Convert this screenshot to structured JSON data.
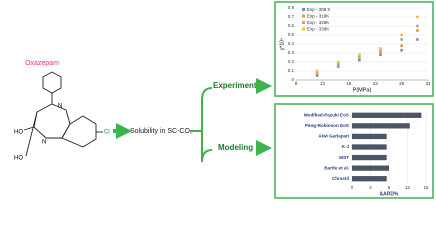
{
  "diagram": {
    "compound": "Oxazepam",
    "atoms": [
      "N",
      "N",
      "Cl",
      "HO",
      "HO"
    ],
    "process": "Solubility in SC-CO₂",
    "branches": [
      "Experimental",
      "Modeling"
    ]
  },
  "chart_data": [
    {
      "type": "scatter",
      "xlabel": "P(MPa)",
      "ylabel": "y*10⁴",
      "x": [
        12,
        16,
        20,
        24,
        28,
        31
      ],
      "series": [
        {
          "name": "Exp - 308 K",
          "color": "#6f8fc7",
          "values": [
            0.05,
            0.15,
            0.22,
            0.28,
            0.33,
            0.45
          ]
        },
        {
          "name": "Exp - 318K",
          "color": "#e8923a",
          "values": [
            0.07,
            0.17,
            0.25,
            0.3,
            0.38,
            0.55
          ]
        },
        {
          "name": "Exp - 328K",
          "color": "#a6a6a6",
          "values": [
            0.08,
            0.18,
            0.27,
            0.33,
            0.45,
            0.6
          ]
        },
        {
          "name": "Exp - 338K",
          "color": "#f2c12e",
          "values": [
            0.1,
            0.2,
            0.28,
            0.35,
            0.5,
            0.7
          ]
        }
      ],
      "xlim": [
        8,
        33
      ],
      "xticks": [
        8,
        13,
        18,
        23,
        28,
        33
      ],
      "ylim": [
        0,
        0.8
      ],
      "yticks": [
        0,
        0.1,
        0.2,
        0.3,
        0.4,
        0.5,
        0.6,
        0.7,
        0.8
      ],
      "grid": true
    },
    {
      "type": "barh",
      "xlabel": "AARD%",
      "color": "#4a5566",
      "categories": [
        "Modified-Pazuki EoS",
        "Peng-Robinson EoS",
        "Alwi Garlapati",
        "K-J",
        "MST",
        "Bartle et al.",
        "Chrastil"
      ],
      "values": [
        15,
        12.5,
        7.5,
        7.5,
        7.5,
        8,
        7.5
      ],
      "xlim": [
        0,
        16
      ],
      "xticks": [
        0,
        4,
        8,
        12,
        16
      ],
      "grid": true
    }
  ]
}
